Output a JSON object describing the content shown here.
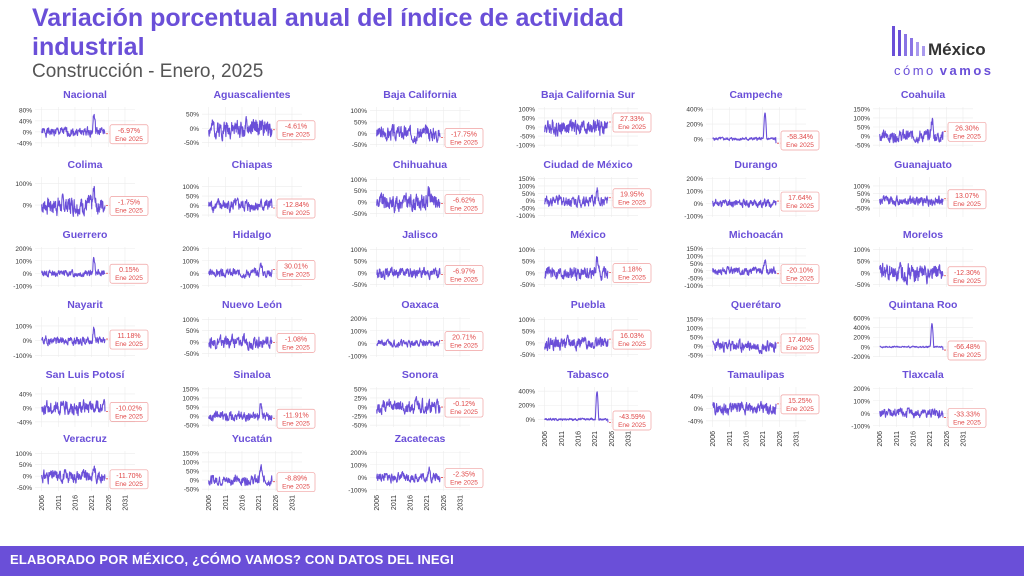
{
  "header": {
    "title": "Variación porcentual anual del índice de actividad industrial",
    "subtitle": "Construcción - Enero, 2025"
  },
  "logo": {
    "word_top": "México",
    "word_bottom_a": "cómo",
    "word_bottom_b": "vamos"
  },
  "footer": {
    "text": "ELABORADO POR MÉXICO, ¿CÓMO VAMOS? CON DATOS DEL INEGI"
  },
  "colors": {
    "accent": "#6a4fd8",
    "line": "#6a4fd8",
    "label": "#e04848"
  },
  "chart_data": {
    "type": "line",
    "x_unit": "year",
    "xlim": [
      2004,
      2034
    ],
    "x_ticks": [
      "2006",
      "2011",
      "2016",
      "2021",
      "2026",
      "2031"
    ],
    "last_date_label": "Ene 2025",
    "panels": [
      {
        "name": "Nacional",
        "last": "-6.97%",
        "value": -6.97,
        "ylim": [
          -55,
          90
        ],
        "ticks": [
          "80%",
          "40%",
          "0%",
          "-40%"
        ],
        "tickvals": [
          80,
          40,
          0,
          -40
        ],
        "amp": 15,
        "spike": 60,
        "seed": 1
      },
      {
        "name": "Aguascalientes",
        "last": "-4.61%",
        "value": -4.61,
        "ylim": [
          -65,
          75
        ],
        "ticks": [
          "50%",
          "0%",
          "-50%"
        ],
        "tickvals": [
          50,
          0,
          -50
        ],
        "amp": 30,
        "spike": 0,
        "seed": 2
      },
      {
        "name": "Baja California",
        "last": "-17.75%",
        "value": -17.75,
        "ylim": [
          -60,
          115
        ],
        "ticks": [
          "100%",
          "50%",
          "0%",
          "-50%"
        ],
        "tickvals": [
          100,
          50,
          0,
          -50
        ],
        "amp": 30,
        "spike": 0,
        "seed": 3
      },
      {
        "name": "Baja California Sur",
        "last": "27.33%",
        "value": 27.33,
        "ylim": [
          -110,
          110
        ],
        "ticks": [
          "100%",
          "50%",
          "0%",
          "-50%",
          "-100%"
        ],
        "tickvals": [
          100,
          50,
          0,
          -50,
          -100
        ],
        "amp": 40,
        "spike": 0,
        "seed": 4
      },
      {
        "name": "Campeche",
        "last": "-58.34%",
        "value": -58.34,
        "ylim": [
          -110,
          430
        ],
        "ticks": [
          "400%",
          "200%",
          "0%"
        ],
        "tickvals": [
          400,
          200,
          0
        ],
        "amp": 20,
        "spike": 330,
        "seed": 5
      },
      {
        "name": "Coahuila",
        "last": "26.30%",
        "value": 26.3,
        "ylim": [
          -60,
          160
        ],
        "ticks": [
          "150%",
          "100%",
          "50%",
          "0%",
          "-50%"
        ],
        "tickvals": [
          150,
          100,
          50,
          0,
          -50
        ],
        "amp": 30,
        "spike": 90,
        "seed": 6
      },
      {
        "name": "Colima",
        "last": "-1.75%",
        "value": -1.75,
        "ylim": [
          -55,
          130
        ],
        "ticks": [
          "100%",
          "0%"
        ],
        "tickvals": [
          100,
          0
        ],
        "amp": 40,
        "spike": 60,
        "seed": 7
      },
      {
        "name": "Chiapas",
        "last": "-12.84%",
        "value": -12.84,
        "ylim": [
          -60,
          150
        ],
        "ticks": [
          "100%",
          "50%",
          "0%",
          "-50%"
        ],
        "tickvals": [
          100,
          50,
          0,
          -50
        ],
        "amp": 30,
        "spike": 0,
        "seed": 8
      },
      {
        "name": "Chihuahua",
        "last": "-6.62%",
        "value": -6.62,
        "ylim": [
          -65,
          110
        ],
        "ticks": [
          "100%",
          "50%",
          "0%",
          "-50%"
        ],
        "tickvals": [
          100,
          50,
          0,
          -50
        ],
        "amp": 35,
        "spike": 50,
        "seed": 9
      },
      {
        "name": "Ciudad de México",
        "last": "19.95%",
        "value": 19.95,
        "ylim": [
          -110,
          160
        ],
        "ticks": [
          "150%",
          "100%",
          "50%",
          "0%",
          "-50%",
          "-100%"
        ],
        "tickvals": [
          150,
          100,
          50,
          0,
          -50,
          -100
        ],
        "amp": 35,
        "spike": 60,
        "seed": 10
      },
      {
        "name": "Durango",
        "last": "17.64%",
        "value": 17.64,
        "ylim": [
          -110,
          210
        ],
        "ticks": [
          "200%",
          "100%",
          "0%",
          "-100%"
        ],
        "tickvals": [
          200,
          100,
          0,
          -100
        ],
        "amp": 30,
        "spike": 0,
        "seed": 11
      },
      {
        "name": "Guanajuato",
        "last": "13.07%",
        "value": 13.07,
        "ylim": [
          -110,
          160
        ],
        "ticks": [
          "100%",
          "50%",
          "0%",
          "-50%"
        ],
        "tickvals": [
          100,
          50,
          0,
          -50
        ],
        "amp": 30,
        "spike": 0,
        "seed": 12
      },
      {
        "name": "Guerrero",
        "last": "0.15%",
        "value": 0.15,
        "ylim": [
          -110,
          210
        ],
        "ticks": [
          "200%",
          "100%",
          "0%",
          "-100%"
        ],
        "tickvals": [
          200,
          100,
          0,
          -100
        ],
        "amp": 25,
        "spike": 120,
        "seed": 13
      },
      {
        "name": "Hidalgo",
        "last": "30.01%",
        "value": 30.01,
        "ylim": [
          -110,
          210
        ],
        "ticks": [
          "200%",
          "100%",
          "0%",
          "-100%"
        ],
        "tickvals": [
          200,
          100,
          0,
          -100
        ],
        "amp": 30,
        "spike": 80,
        "seed": 14
      },
      {
        "name": "Jalisco",
        "last": "-6.97%",
        "value": -6.97,
        "ylim": [
          -60,
          110
        ],
        "ticks": [
          "100%",
          "50%",
          "0%",
          "-50%"
        ],
        "tickvals": [
          100,
          50,
          0,
          -50
        ],
        "amp": 20,
        "spike": 0,
        "seed": 15
      },
      {
        "name": "México",
        "last": "1.18%",
        "value": 1.18,
        "ylim": [
          -60,
          110
        ],
        "ticks": [
          "100%",
          "50%",
          "0%",
          "-50%"
        ],
        "tickvals": [
          100,
          50,
          0,
          -50
        ],
        "amp": 25,
        "spike": 60,
        "seed": 16
      },
      {
        "name": "Michoacán",
        "last": "-20.10%",
        "value": -20.1,
        "ylim": [
          -110,
          160
        ],
        "ticks": [
          "150%",
          "100%",
          "50%",
          "0%",
          "-50%",
          "-100%"
        ],
        "tickvals": [
          150,
          100,
          50,
          0,
          -50,
          -100
        ],
        "amp": 25,
        "spike": 70,
        "seed": 17
      },
      {
        "name": "Morelos",
        "last": "-12.30%",
        "value": -12.3,
        "ylim": [
          -60,
          110
        ],
        "ticks": [
          "100%",
          "50%",
          "0%",
          "-50%"
        ],
        "tickvals": [
          100,
          50,
          0,
          -50
        ],
        "amp": 35,
        "spike": 0,
        "seed": 18
      },
      {
        "name": "Nayarit",
        "last": "11.18%",
        "value": 11.18,
        "ylim": [
          -110,
          160
        ],
        "ticks": [
          "100%",
          "0%",
          "-100%"
        ],
        "tickvals": [
          100,
          0,
          -100
        ],
        "amp": 25,
        "spike": 80,
        "seed": 19
      },
      {
        "name": "Nuevo León",
        "last": "-1.08%",
        "value": -1.08,
        "ylim": [
          -65,
          110
        ],
        "ticks": [
          "100%",
          "50%",
          "0%",
          "-50%"
        ],
        "tickvals": [
          100,
          50,
          0,
          -50
        ],
        "amp": 25,
        "spike": 0,
        "seed": 20
      },
      {
        "name": "Oaxaca",
        "last": "20.71%",
        "value": 20.71,
        "ylim": [
          -110,
          210
        ],
        "ticks": [
          "200%",
          "100%",
          "0%",
          "-100%"
        ],
        "tickvals": [
          200,
          100,
          0,
          -100
        ],
        "amp": 25,
        "spike": 0,
        "seed": 21
      },
      {
        "name": "Puebla",
        "last": "16.03%",
        "value": 16.03,
        "ylim": [
          -60,
          110
        ],
        "ticks": [
          "100%",
          "50%",
          "0%",
          "-50%"
        ],
        "tickvals": [
          100,
          50,
          0,
          -50
        ],
        "amp": 25,
        "spike": 0,
        "seed": 22
      },
      {
        "name": "Querétaro",
        "last": "17.40%",
        "value": 17.4,
        "ylim": [
          -60,
          160
        ],
        "ticks": [
          "150%",
          "100%",
          "50%",
          "0%",
          "-50%"
        ],
        "tickvals": [
          150,
          100,
          50,
          0,
          -50
        ],
        "amp": 30,
        "spike": 0,
        "seed": 23
      },
      {
        "name": "Quintana Roo",
        "last": "-66.48%",
        "value": -66.48,
        "ylim": [
          -210,
          620
        ],
        "ticks": [
          "600%",
          "400%",
          "200%",
          "0%",
          "-200%"
        ],
        "tickvals": [
          600,
          400,
          200,
          0,
          -200
        ],
        "amp": 15,
        "spike": 470,
        "seed": 24
      },
      {
        "name": "San Luis Potosí",
        "last": "-10.02%",
        "value": -10.02,
        "ylim": [
          -55,
          60
        ],
        "ticks": [
          "40%",
          "0%",
          "-40%"
        ],
        "tickvals": [
          40,
          0,
          -40
        ],
        "amp": 18,
        "spike": 0,
        "seed": 25
      },
      {
        "name": "Sinaloa",
        "last": "-11.91%",
        "value": -11.91,
        "ylim": [
          -60,
          160
        ],
        "ticks": [
          "150%",
          "100%",
          "50%",
          "0%",
          "-50%"
        ],
        "tickvals": [
          150,
          100,
          50,
          0,
          -50
        ],
        "amp": 25,
        "spike": 60,
        "seed": 26
      },
      {
        "name": "Sonora",
        "last": "-0.12%",
        "value": -0.12,
        "ylim": [
          -55,
          55
        ],
        "ticks": [
          "50%",
          "25%",
          "0%",
          "-25%",
          "-50%"
        ],
        "tickvals": [
          50,
          25,
          0,
          -25,
          -50
        ],
        "amp": 18,
        "spike": 0,
        "seed": 27
      },
      {
        "name": "Tabasco",
        "last": "-43.59%",
        "value": -43.59,
        "ylim": [
          -110,
          460
        ],
        "ticks": [
          "400%",
          "200%",
          "0%"
        ],
        "tickvals": [
          400,
          200,
          0
        ],
        "amp": 15,
        "spike": 400,
        "seed": 28
      },
      {
        "name": "Tamaulipas",
        "last": "15.25%",
        "value": 15.25,
        "ylim": [
          -60,
          70
        ],
        "ticks": [
          "40%",
          "0%",
          "-40%"
        ],
        "tickvals": [
          40,
          0,
          -40
        ],
        "amp": 18,
        "spike": 0,
        "seed": 29
      },
      {
        "name": "Tlaxcala",
        "last": "-33.33%",
        "value": -33.33,
        "ylim": [
          -110,
          210
        ],
        "ticks": [
          "200%",
          "100%",
          "0%",
          "-100%"
        ],
        "tickvals": [
          200,
          100,
          0,
          -100
        ],
        "amp": 35,
        "spike": 0,
        "seed": 30
      },
      {
        "name": "Veracruz",
        "last": "-11.70%",
        "value": -11.7,
        "ylim": [
          -65,
          110
        ],
        "ticks": [
          "100%",
          "50%",
          "0%",
          "-50%"
        ],
        "tickvals": [
          100,
          50,
          0,
          -50
        ],
        "amp": 25,
        "spike": 40,
        "seed": 31
      },
      {
        "name": "Yucatán",
        "last": "-8.89%",
        "value": -8.89,
        "ylim": [
          -60,
          160
        ],
        "ticks": [
          "150%",
          "100%",
          "50%",
          "0%",
          "-50%"
        ],
        "tickvals": [
          150,
          100,
          50,
          0,
          -50
        ],
        "amp": 25,
        "spike": 70,
        "seed": 32
      },
      {
        "name": "Zacatecas",
        "last": "-2.35%",
        "value": -2.35,
        "ylim": [
          -110,
          210
        ],
        "ticks": [
          "200%",
          "100%",
          "0%",
          "-100%"
        ],
        "tickvals": [
          200,
          100,
          0,
          -100
        ],
        "amp": 35,
        "spike": 60,
        "seed": 33
      }
    ]
  }
}
